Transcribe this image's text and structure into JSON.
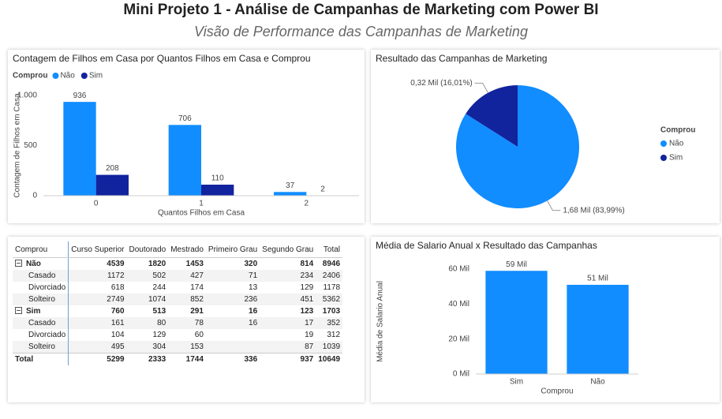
{
  "header": {
    "title": "Mini Projeto 1 - Análise de Campanhas de Marketing com Power BI",
    "subtitle": "Visão de Performance das Campanhas de Marketing"
  },
  "chart_data": [
    {
      "type": "bar",
      "title": "Contagem de Filhos em Casa por Quantos Filhos em Casa e Comprou",
      "legend_title": "Comprou",
      "categories": [
        "0",
        "1",
        "2"
      ],
      "series": [
        {
          "name": "Não",
          "color": "#118DFF",
          "values": [
            936,
            706,
            37
          ]
        },
        {
          "name": "Sim",
          "color": "#12239E",
          "values": [
            208,
            110,
            2
          ]
        }
      ],
      "ylabel": "Contagem de Filhos em Casa",
      "xlabel": "Quantos Filhos em Casa",
      "ylim": [
        0,
        1000
      ],
      "yticks": [
        0,
        500,
        {
          "value": 1000,
          "label": "1.000"
        }
      ],
      "grid": false
    },
    {
      "type": "pie",
      "title": "Resultado das Campanhas de Marketing",
      "legend_title": "Comprou",
      "categories": [
        "Não",
        "Sim"
      ],
      "colors": [
        "#118DFF",
        "#12239E"
      ],
      "values": [
        1680,
        320
      ],
      "value_labels": [
        "1,68 Mil (83,99%)",
        "0,32 Mil (16,01%)"
      ]
    },
    {
      "type": "bar",
      "title": "Média de Salario Anual x Resultado das Campanhas",
      "categories": [
        "Sim",
        "Não"
      ],
      "values": [
        59000,
        51000
      ],
      "value_labels": [
        "59 Mil",
        "51 Mil"
      ],
      "color": "#118DFF",
      "ylabel": "Média de Salario Anual",
      "xlabel": "Comprou",
      "ylim": [
        0,
        60000
      ],
      "yticks": [
        {
          "value": 0,
          "label": "0 Mil"
        },
        {
          "value": 20000,
          "label": "20 Mil"
        },
        {
          "value": 40000,
          "label": "40 Mil"
        },
        {
          "value": 60000,
          "label": "60 Mil"
        }
      ],
      "grid": false
    }
  ],
  "table": {
    "columns": [
      "Comprou",
      "Curso Superior",
      "Doutorado",
      "Mestrado",
      "Primeiro Grau",
      "Segundo Grau",
      "Total"
    ],
    "groups": [
      {
        "label": "Não",
        "values": [
          4539,
          1820,
          1453,
          320,
          814,
          8946
        ],
        "rows": [
          {
            "label": "Casado",
            "values": [
              1172,
              502,
              427,
              71,
              234,
              2406
            ]
          },
          {
            "label": "Divorciado",
            "values": [
              618,
              244,
              174,
              13,
              129,
              1178
            ]
          },
          {
            "label": "Solteiro",
            "values": [
              2749,
              1074,
              852,
              236,
              451,
              5362
            ]
          }
        ]
      },
      {
        "label": "Sim",
        "values": [
          760,
          513,
          291,
          16,
          123,
          1703
        ],
        "rows": [
          {
            "label": "Casado",
            "values": [
              161,
              80,
              78,
              16,
              17,
              352
            ]
          },
          {
            "label": "Divorciado",
            "values": [
              104,
              129,
              60,
              null,
              19,
              312
            ]
          },
          {
            "label": "Solteiro",
            "values": [
              495,
              304,
              153,
              null,
              87,
              1039
            ]
          }
        ]
      }
    ],
    "total": {
      "label": "Total",
      "values": [
        5299,
        2333,
        1744,
        336,
        937,
        10649
      ]
    }
  }
}
